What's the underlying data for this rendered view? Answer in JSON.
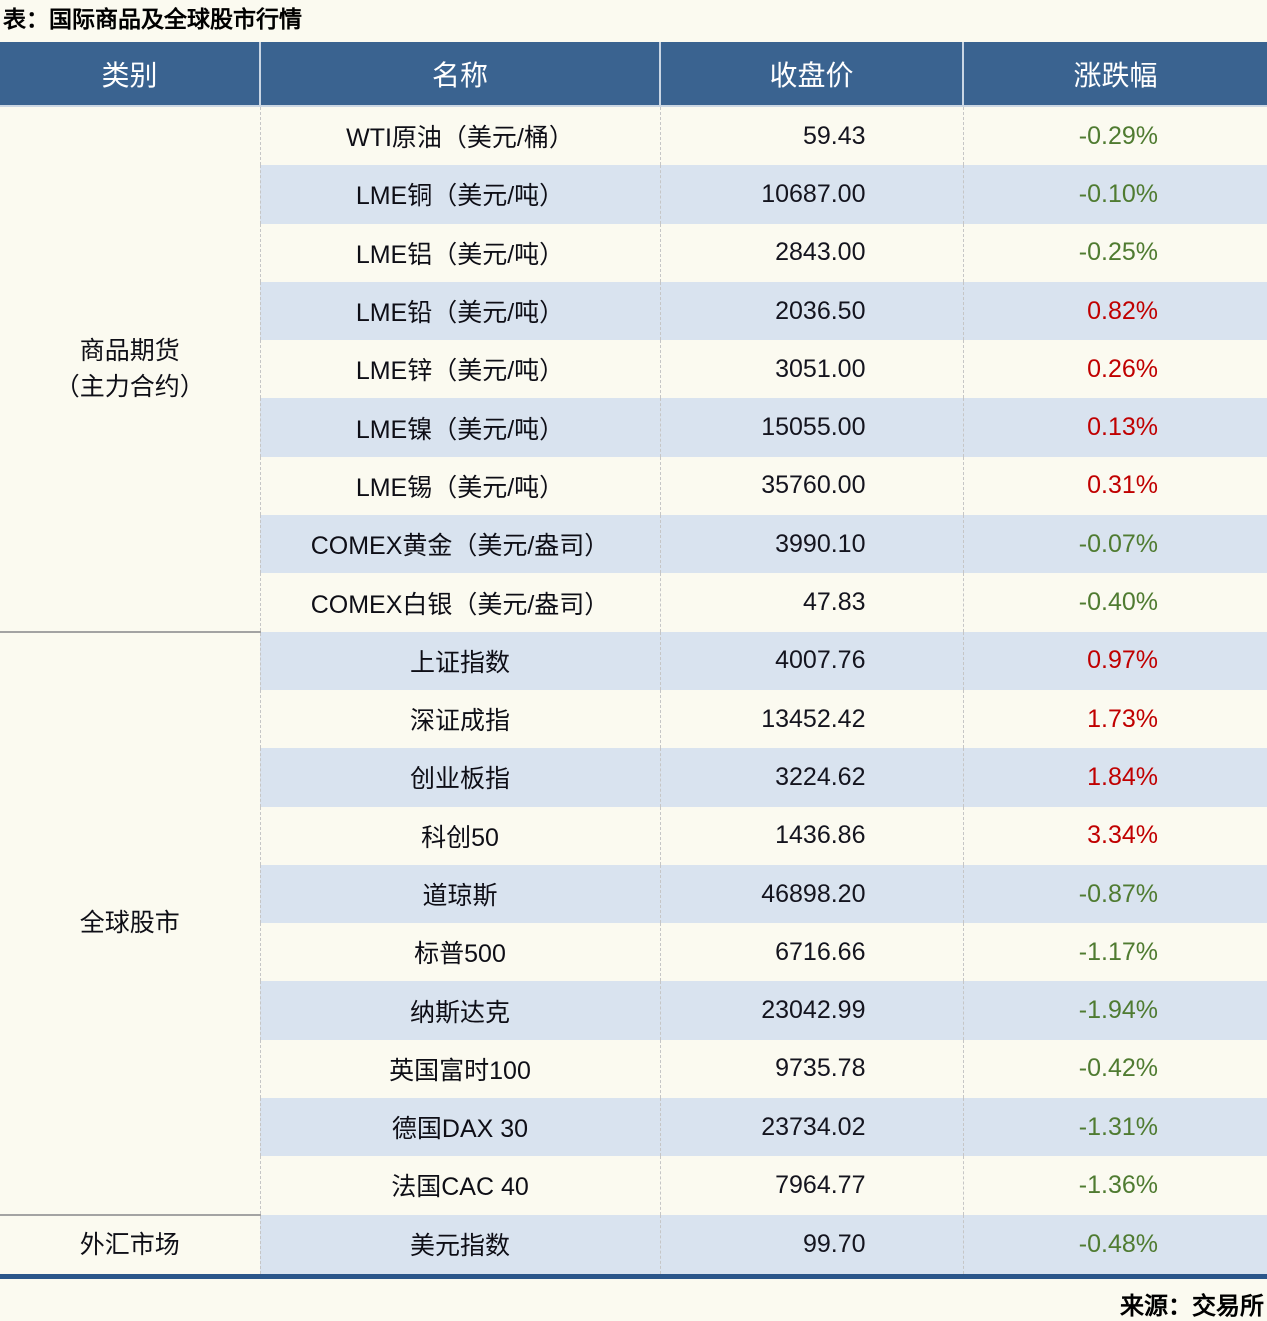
{
  "title": "表：国际商品及全球股市行情",
  "source": "来源：交易所",
  "colors": {
    "header_bg": "#3a6390",
    "stripe_blue": "#d9e3ef",
    "up_red": "#c00000",
    "down_green": "#4f7b31",
    "bottom_border": "#2b568a"
  },
  "table": {
    "headers": {
      "category": "类别",
      "name": "名称",
      "close": "收盘价",
      "change": "涨跌幅"
    },
    "categories": [
      {
        "line1": "商品期货",
        "line2": "（主力合约）"
      },
      {
        "line1": "全球股市",
        "line2": ""
      },
      {
        "line1": "外汇市场",
        "line2": ""
      }
    ],
    "rows": [
      {
        "name": "WTI原油（美元/桶）",
        "close": "59.43",
        "change": "-0.29%",
        "trend": "down"
      },
      {
        "name": "LME铜（美元/吨）",
        "close": "10687.00",
        "change": "-0.10%",
        "trend": "down"
      },
      {
        "name": "LME铝（美元/吨）",
        "close": "2843.00",
        "change": "-0.25%",
        "trend": "down"
      },
      {
        "name": "LME铅（美元/吨）",
        "close": "2036.50",
        "change": "0.82%",
        "trend": "up"
      },
      {
        "name": "LME锌（美元/吨）",
        "close": "3051.00",
        "change": "0.26%",
        "trend": "up"
      },
      {
        "name": "LME镍（美元/吨）",
        "close": "15055.00",
        "change": "0.13%",
        "trend": "up"
      },
      {
        "name": "LME锡（美元/吨）",
        "close": "35760.00",
        "change": "0.31%",
        "trend": "up"
      },
      {
        "name": "COMEX黄金（美元/盎司）",
        "close": "3990.10",
        "change": "-0.07%",
        "trend": "down"
      },
      {
        "name": "COMEX白银（美元/盎司）",
        "close": "47.83",
        "change": "-0.40%",
        "trend": "down"
      },
      {
        "name": "上证指数",
        "close": "4007.76",
        "change": "0.97%",
        "trend": "up"
      },
      {
        "name": "深证成指",
        "close": "13452.42",
        "change": "1.73%",
        "trend": "up"
      },
      {
        "name": "创业板指",
        "close": "3224.62",
        "change": "1.84%",
        "trend": "up"
      },
      {
        "name": "科创50",
        "close": "1436.86",
        "change": "3.34%",
        "trend": "up"
      },
      {
        "name": "道琼斯",
        "close": "46898.20",
        "change": "-0.87%",
        "trend": "down"
      },
      {
        "name": "标普500",
        "close": "6716.66",
        "change": "-1.17%",
        "trend": "down"
      },
      {
        "name": "纳斯达克",
        "close": "23042.99",
        "change": "-1.94%",
        "trend": "down"
      },
      {
        "name": "英国富时100",
        "close": "9735.78",
        "change": "-0.42%",
        "trend": "down"
      },
      {
        "name": "德国DAX 30",
        "close": "23734.02",
        "change": "-1.31%",
        "trend": "down"
      },
      {
        "name": "法国CAC 40",
        "close": "7964.77",
        "change": "-1.36%",
        "trend": "down"
      },
      {
        "name": "美元指数",
        "close": "99.70",
        "change": "-0.48%",
        "trend": "down"
      }
    ]
  }
}
